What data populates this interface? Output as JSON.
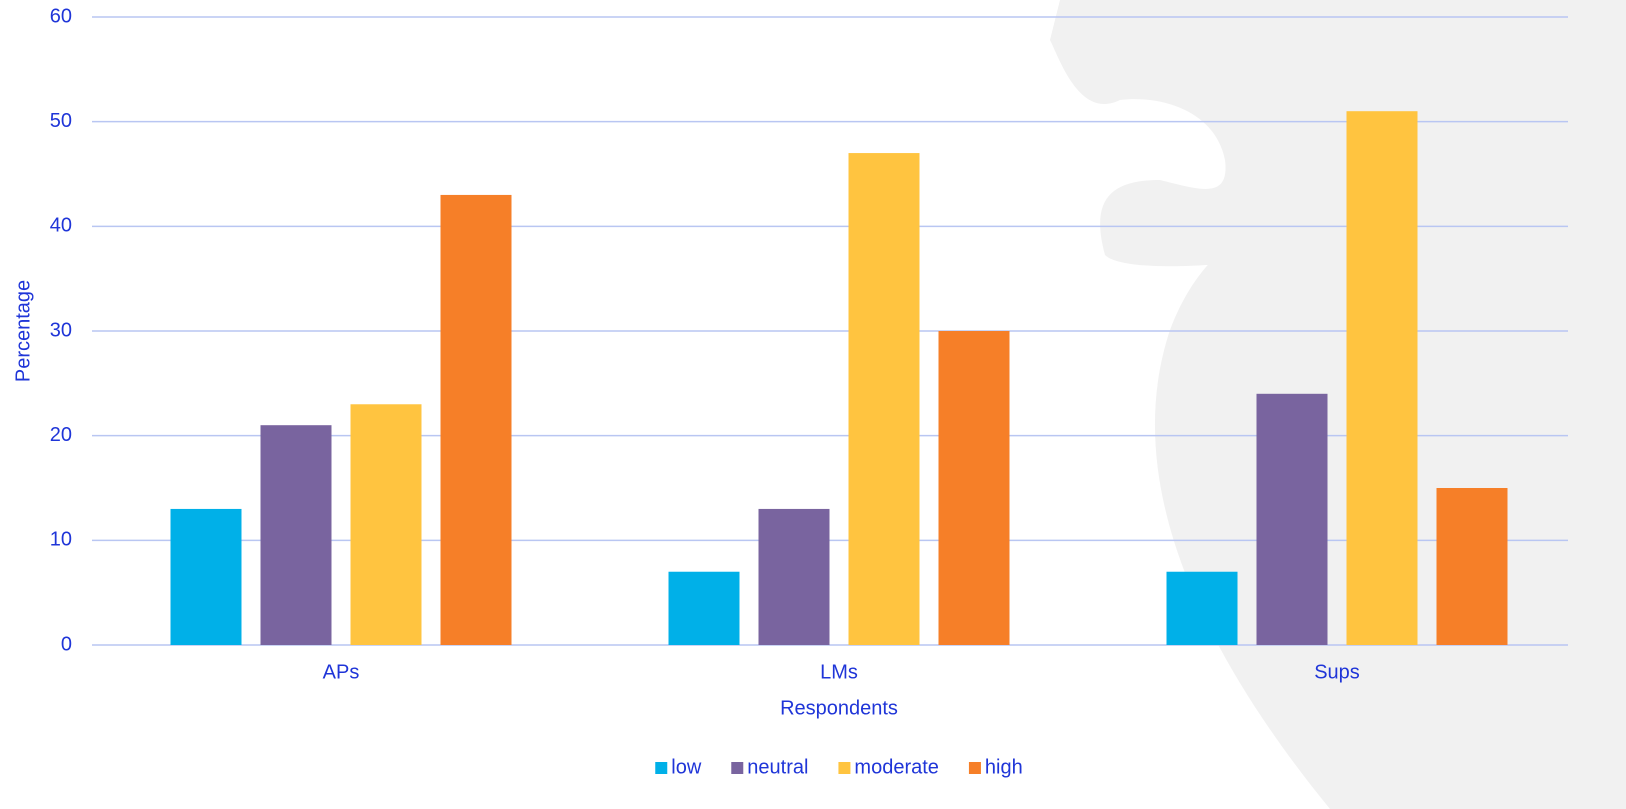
{
  "chart_data": {
    "type": "bar",
    "x_label": "Respondents",
    "y_label": "Percentage",
    "categories": [
      "APs",
      "LMs",
      "Sups"
    ],
    "series": [
      {
        "name": "low",
        "color": "#00b0e8",
        "values": [
          13,
          7,
          7
        ]
      },
      {
        "name": "neutral",
        "color": "#79649f",
        "values": [
          21,
          13,
          24
        ]
      },
      {
        "name": "moderate",
        "color": "#ffc440",
        "values": [
          23,
          47,
          51
        ]
      },
      {
        "name": "high",
        "color": "#f67f28",
        "values": [
          43,
          30,
          15
        ]
      }
    ],
    "ylim": [
      0,
      60
    ],
    "yticks": [
      0,
      10,
      20,
      30,
      40,
      50,
      60
    ],
    "grid": true,
    "legend": "bottom"
  }
}
